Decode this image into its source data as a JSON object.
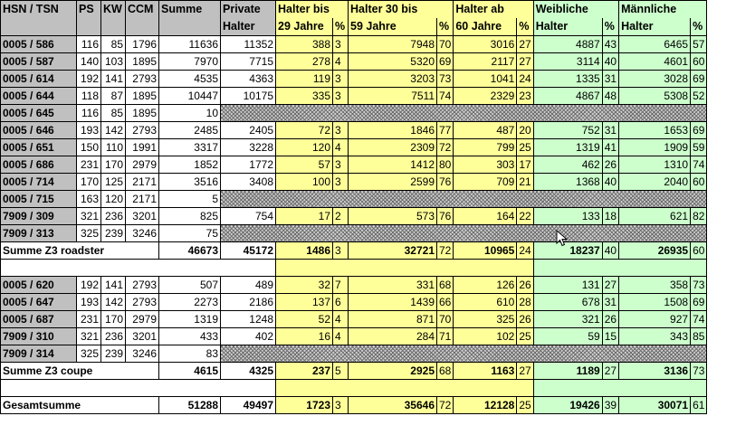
{
  "headers": {
    "hsn": "HSN / TSN",
    "ps": "PS",
    "kw": "KW",
    "ccm": "CCM",
    "summe": "Summe",
    "private_1": "Private",
    "private_2": "Halter",
    "h29_1": "Halter bis",
    "h29_2": "29 Jahre",
    "h3059_1": "Halter 30 bis",
    "h3059_2": "59 Jahre",
    "h60_1": "Halter ab",
    "h60_2": "60 Jahre",
    "w_1": "Weibliche",
    "w_2": "Halter",
    "m_1": "Männliche",
    "m_2": "Halter",
    "pct": "%"
  },
  "roadster_rows": [
    {
      "hsn": "0005 / 586",
      "ps": "116",
      "kw": "85",
      "ccm": "1796",
      "summe": "11636",
      "private": "11352",
      "h29": "388",
      "h29p": "3",
      "h3059": "7948",
      "h3059p": "70",
      "h60": "3016",
      "h60p": "27",
      "w": "4887",
      "wp": "43",
      "m": "6465",
      "mp": "57"
    },
    {
      "hsn": "0005 / 587",
      "ps": "140",
      "kw": "103",
      "ccm": "1895",
      "summe": "7970",
      "private": "7715",
      "h29": "278",
      "h29p": "4",
      "h3059": "5320",
      "h3059p": "69",
      "h60": "2117",
      "h60p": "27",
      "w": "3114",
      "wp": "40",
      "m": "4601",
      "mp": "60"
    },
    {
      "hsn": "0005 / 614",
      "ps": "192",
      "kw": "141",
      "ccm": "2793",
      "summe": "4535",
      "private": "4363",
      "h29": "119",
      "h29p": "3",
      "h3059": "3203",
      "h3059p": "73",
      "h60": "1041",
      "h60p": "24",
      "w": "1335",
      "wp": "31",
      "m": "3028",
      "mp": "69"
    },
    {
      "hsn": "0005 / 644",
      "ps": "118",
      "kw": "87",
      "ccm": "1895",
      "summe": "10447",
      "private": "10175",
      "h29": "335",
      "h29p": "3",
      "h3059": "7511",
      "h3059p": "74",
      "h60": "2329",
      "h60p": "23",
      "w": "4867",
      "wp": "48",
      "m": "5308",
      "mp": "52"
    },
    {
      "hsn": "0005 / 645",
      "ps": "116",
      "kw": "85",
      "ccm": "1895",
      "summe": "10",
      "hatched": true
    },
    {
      "hsn": "0005 / 646",
      "ps": "193",
      "kw": "142",
      "ccm": "2793",
      "summe": "2485",
      "private": "2405",
      "h29": "72",
      "h29p": "3",
      "h3059": "1846",
      "h3059p": "77",
      "h60": "487",
      "h60p": "20",
      "w": "752",
      "wp": "31",
      "m": "1653",
      "mp": "69"
    },
    {
      "hsn": "0005 / 651",
      "ps": "150",
      "kw": "110",
      "ccm": "1991",
      "summe": "3317",
      "private": "3228",
      "h29": "120",
      "h29p": "4",
      "h3059": "2309",
      "h3059p": "72",
      "h60": "799",
      "h60p": "25",
      "w": "1319",
      "wp": "41",
      "m": "1909",
      "mp": "59"
    },
    {
      "hsn": "0005 / 686",
      "ps": "231",
      "kw": "170",
      "ccm": "2979",
      "summe": "1852",
      "private": "1772",
      "h29": "57",
      "h29p": "3",
      "h3059": "1412",
      "h3059p": "80",
      "h60": "303",
      "h60p": "17",
      "w": "462",
      "wp": "26",
      "m": "1310",
      "mp": "74"
    },
    {
      "hsn": "0005 / 714",
      "ps": "170",
      "kw": "125",
      "ccm": "2171",
      "summe": "3516",
      "private": "3408",
      "h29": "100",
      "h29p": "3",
      "h3059": "2599",
      "h3059p": "76",
      "h60": "709",
      "h60p": "21",
      "w": "1368",
      "wp": "40",
      "m": "2040",
      "mp": "60"
    },
    {
      "hsn": "0005 / 715",
      "ps": "163",
      "kw": "120",
      "ccm": "2171",
      "summe": "5",
      "hatched": true
    },
    {
      "hsn": "7909 / 309",
      "ps": "321",
      "kw": "236",
      "ccm": "3201",
      "summe": "825",
      "private": "754",
      "h29": "17",
      "h29p": "2",
      "h3059": "573",
      "h3059p": "76",
      "h60": "164",
      "h60p": "22",
      "w": "133",
      "wp": "18",
      "m": "621",
      "mp": "82"
    },
    {
      "hsn": "7909 / 313",
      "ps": "325",
      "kw": "239",
      "ccm": "3246",
      "summe": "75",
      "hatched": true
    }
  ],
  "roadster_sum": {
    "label": "Summe Z3 roadster",
    "summe": "46673",
    "private": "45172",
    "h29": "1486",
    "h29p": "3",
    "h3059": "32721",
    "h3059p": "72",
    "h60": "10965",
    "h60p": "24",
    "w": "18237",
    "wp": "40",
    "m": "26935",
    "mp": "60"
  },
  "coupe_rows": [
    {
      "hsn": "0005 / 620",
      "ps": "192",
      "kw": "141",
      "ccm": "2793",
      "summe": "507",
      "private": "489",
      "h29": "32",
      "h29p": "7",
      "h3059": "331",
      "h3059p": "68",
      "h60": "126",
      "h60p": "26",
      "w": "131",
      "wp": "27",
      "m": "358",
      "mp": "73"
    },
    {
      "hsn": "0005 / 647",
      "ps": "193",
      "kw": "142",
      "ccm": "2793",
      "summe": "2273",
      "private": "2186",
      "h29": "137",
      "h29p": "6",
      "h3059": "1439",
      "h3059p": "66",
      "h60": "610",
      "h60p": "28",
      "w": "678",
      "wp": "31",
      "m": "1508",
      "mp": "69"
    },
    {
      "hsn": "0005 / 687",
      "ps": "231",
      "kw": "170",
      "ccm": "2979",
      "summe": "1319",
      "private": "1248",
      "h29": "52",
      "h29p": "4",
      "h3059": "871",
      "h3059p": "70",
      "h60": "325",
      "h60p": "26",
      "w": "321",
      "wp": "26",
      "m": "927",
      "mp": "74"
    },
    {
      "hsn": "7909 / 310",
      "ps": "321",
      "kw": "236",
      "ccm": "3201",
      "summe": "433",
      "private": "402",
      "h29": "16",
      "h29p": "4",
      "h3059": "284",
      "h3059p": "71",
      "h60": "102",
      "h60p": "25",
      "w": "59",
      "wp": "15",
      "m": "343",
      "mp": "85"
    },
    {
      "hsn": "7909 / 314",
      "ps": "325",
      "kw": "239",
      "ccm": "3246",
      "summe": "83",
      "hatched": true
    }
  ],
  "coupe_sum": {
    "label": "Summe Z3 coupe",
    "summe": "4615",
    "private": "4325",
    "h29": "237",
    "h29p": "5",
    "h3059": "2925",
    "h3059p": "68",
    "h60": "1163",
    "h60p": "27",
    "w": "1189",
    "wp": "27",
    "m": "3136",
    "mp": "73"
  },
  "total_sum": {
    "label": "Gesamtsumme",
    "summe": "51288",
    "private": "49497",
    "h29": "1723",
    "h29p": "3",
    "h3059": "35646",
    "h3059p": "72",
    "h60": "12128",
    "h60p": "25",
    "w": "19426",
    "wp": "39",
    "m": "30071",
    "mp": "61"
  },
  "colors": {
    "header": "#c0c0c0",
    "young_band": "#ffff99",
    "gender_band": "#ccffcc"
  },
  "cursor_icon": "mouse-pointer-icon"
}
